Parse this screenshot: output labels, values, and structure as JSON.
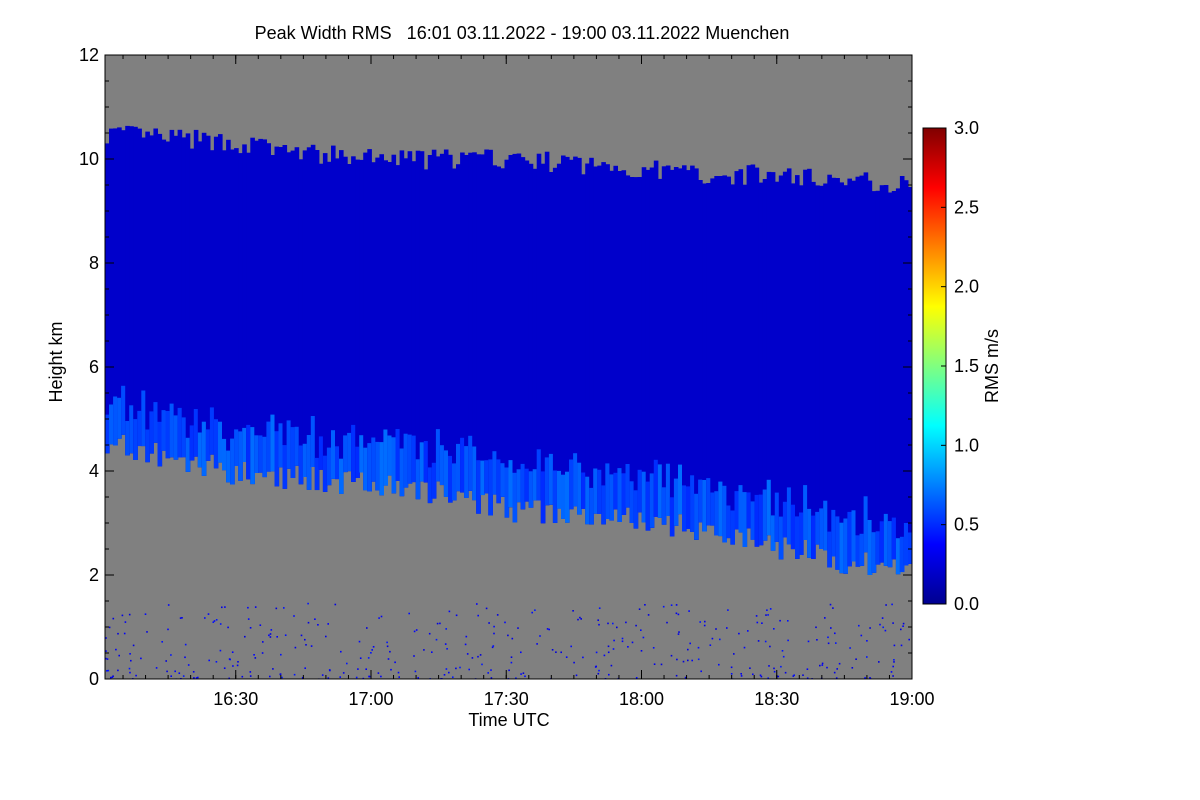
{
  "chart_data": {
    "type": "heatmap",
    "title": "Peak Width RMS   16:01 03.11.2022 - 19:00 03.11.2022 Muenchen",
    "xlabel": "Time UTC",
    "ylabel": "Height km",
    "colorbar_label": "RMS m/s",
    "x_range_hours": [
      16.0167,
      19.0
    ],
    "y_range_km": [
      0,
      12
    ],
    "x_ticks": [
      {
        "value": 16.5,
        "label": "16:30"
      },
      {
        "value": 17.0,
        "label": "17:00"
      },
      {
        "value": 17.5,
        "label": "17:30"
      },
      {
        "value": 18.0,
        "label": "18:00"
      },
      {
        "value": 18.5,
        "label": "18:30"
      },
      {
        "value": 19.0,
        "label": "19:00"
      }
    ],
    "y_ticks": [
      {
        "value": 0,
        "label": "0"
      },
      {
        "value": 2,
        "label": "2"
      },
      {
        "value": 4,
        "label": "4"
      },
      {
        "value": 6,
        "label": "6"
      },
      {
        "value": 8,
        "label": "8"
      },
      {
        "value": 10,
        "label": "10"
      },
      {
        "value": 12,
        "label": "12"
      }
    ],
    "colorbar_range": [
      0.0,
      3.0
    ],
    "colorbar_ticks": [
      {
        "value": 0.0,
        "label": "0.0"
      },
      {
        "value": 0.5,
        "label": "0.5"
      },
      {
        "value": 1.0,
        "label": "1.0"
      },
      {
        "value": 1.5,
        "label": "1.5"
      },
      {
        "value": 2.0,
        "label": "2.0"
      },
      {
        "value": 2.5,
        "label": "2.5"
      },
      {
        "value": 3.0,
        "label": "3.0"
      }
    ],
    "colormap": [
      "#00008f",
      "#0000ff",
      "#0080ff",
      "#00ffff",
      "#80ff80",
      "#ffff00",
      "#ff8000",
      "#ff0000",
      "#800000"
    ],
    "missing_color": "#808080",
    "cloud_layer": {
      "times": [
        16.0167,
        16.25,
        16.5,
        16.75,
        17.0,
        17.25,
        17.5,
        17.75,
        18.0,
        18.25,
        18.5,
        18.75,
        19.0
      ],
      "top_km": [
        10.5,
        10.4,
        10.3,
        10.1,
        10.0,
        10.0,
        10.0,
        9.9,
        9.8,
        9.7,
        9.7,
        9.6,
        9.5
      ],
      "base_km": [
        4.8,
        4.5,
        4.2,
        4.1,
        4.0,
        3.8,
        3.5,
        3.4,
        3.3,
        3.1,
        2.8,
        2.5,
        2.3
      ],
      "typical_rms": 0.2,
      "base_rms": 0.5
    },
    "low_level_returns_km": [
      0,
      1.5
    ]
  }
}
